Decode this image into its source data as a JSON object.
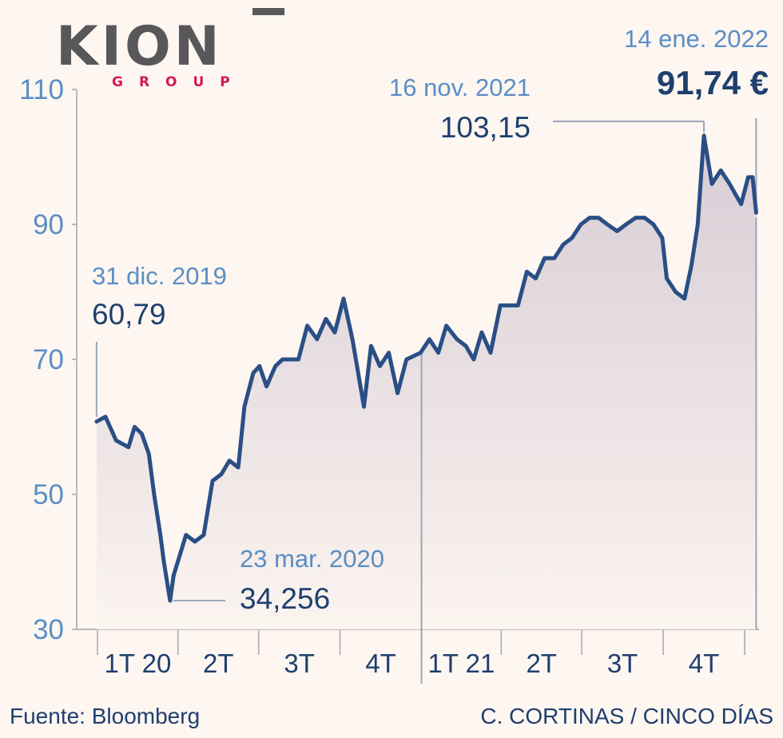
{
  "logo": {
    "name": "KION",
    "sub": "GROUP"
  },
  "footer": {
    "source": "Fuente: Bloomberg",
    "credit": "C. CORTINAS / CINCO DÍAS"
  },
  "colors": {
    "line": "#2a4f85",
    "axis_text": "#5b8ec4",
    "dark_text": "#1f3f6e",
    "background": "#fdf6f1",
    "brand_red": "#d2175a",
    "brand_gray": "#58585a"
  },
  "chart_data": {
    "type": "area",
    "title": "",
    "xlabel": "",
    "ylabel": "",
    "ylim": [
      30,
      110
    ],
    "yticks": [
      "30",
      "50",
      "70",
      "90",
      "110"
    ],
    "ytick_values": [
      30,
      50,
      70,
      90,
      110
    ],
    "x_categories": [
      "1T 20",
      "2T",
      "3T",
      "4T",
      "1T 21",
      "2T",
      "3T",
      "4T"
    ],
    "grid": false,
    "series": [
      {
        "x": [
          "2019-12-31",
          "2020-01-10",
          "2020-01-22",
          "2020-02-05",
          "2020-02-12",
          "2020-02-20",
          "2020-02-28",
          "2020-03-05",
          "2020-03-12",
          "2020-03-16",
          "2020-03-23",
          "2020-03-27",
          "2020-04-03",
          "2020-04-10",
          "2020-04-20",
          "2020-04-30",
          "2020-05-10",
          "2020-05-20",
          "2020-05-29",
          "2020-06-08",
          "2020-06-15",
          "2020-06-25",
          "2020-07-02",
          "2020-07-10",
          "2020-07-20",
          "2020-07-28",
          "2020-08-05",
          "2020-08-15",
          "2020-08-25",
          "2020-09-05",
          "2020-09-15",
          "2020-09-25",
          "2020-10-05",
          "2020-10-15",
          "2020-10-28",
          "2020-11-05",
          "2020-11-15",
          "2020-11-25",
          "2020-12-05",
          "2020-12-15",
          "2020-12-31",
          "2021-01-10",
          "2021-01-20",
          "2021-01-29",
          "2021-02-10",
          "2021-02-20",
          "2021-03-01",
          "2021-03-10",
          "2021-03-20",
          "2021-03-31",
          "2021-04-10",
          "2021-04-20",
          "2021-04-30",
          "2021-05-10",
          "2021-05-20",
          "2021-05-31",
          "2021-06-10",
          "2021-06-20",
          "2021-06-30",
          "2021-07-10",
          "2021-07-20",
          "2021-07-30",
          "2021-08-10",
          "2021-08-20",
          "2021-08-31",
          "2021-09-10",
          "2021-09-20",
          "2021-09-30",
          "2021-10-05",
          "2021-10-15",
          "2021-10-25",
          "2021-11-02",
          "2021-11-09",
          "2021-11-16",
          "2021-11-25",
          "2021-12-05",
          "2021-12-15",
          "2021-12-28",
          "2022-01-05",
          "2022-01-10",
          "2022-01-14"
        ],
        "values": [
          60.79,
          61.5,
          58,
          57,
          60,
          59,
          56,
          50,
          44,
          40,
          34.256,
          38,
          41,
          44,
          43,
          44,
          52,
          53,
          55,
          54,
          63,
          68,
          69,
          66,
          69,
          70,
          70,
          70,
          75,
          73,
          76,
          74,
          79,
          73,
          63,
          72,
          69,
          71,
          65,
          70,
          71,
          73,
          71,
          75,
          73,
          72,
          70,
          74,
          71,
          78,
          78,
          78,
          83,
          82,
          85,
          85,
          87,
          88,
          90,
          91,
          91,
          90,
          89,
          90,
          91,
          91,
          90,
          88,
          82,
          80,
          79,
          84,
          90,
          103.15,
          96,
          98,
          96,
          93,
          97,
          97,
          91.74
        ]
      }
    ],
    "annotations": [
      {
        "date": "31 dic. 2019",
        "value": "60,79"
      },
      {
        "date": "23 mar. 2020",
        "value": "34,256"
      },
      {
        "date": "16 nov. 2021",
        "value": "103,15"
      },
      {
        "date": "14 ene. 2022",
        "value": "91,74 €"
      }
    ]
  }
}
